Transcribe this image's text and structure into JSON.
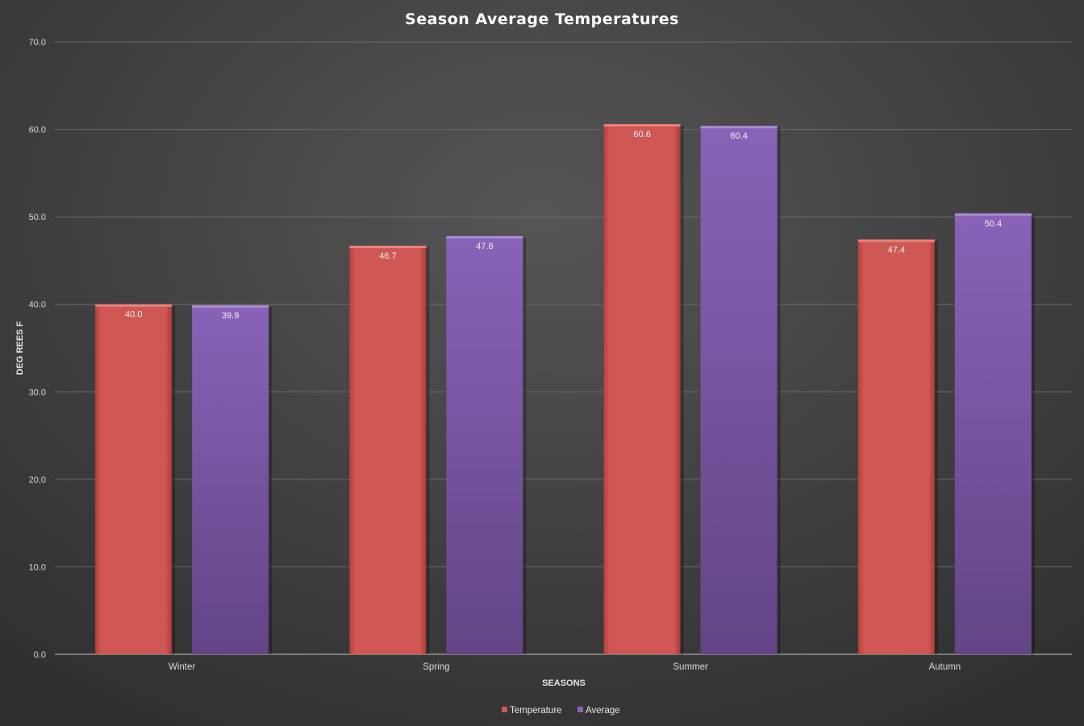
{
  "chart_data": {
    "type": "bar",
    "title": "Season Average Temperatures",
    "xlabel": "SEASONS",
    "ylabel": "DEG REES F",
    "categories": [
      "Winter",
      "Spring",
      "Summer",
      "Autumn"
    ],
    "series": [
      {
        "name": "Temperature",
        "values": [
          40.0,
          46.7,
          60.6,
          47.4
        ],
        "color": "#cf5754"
      },
      {
        "name": "Average",
        "values": [
          39.9,
          47.8,
          60.4,
          50.4
        ],
        "color": "#7e5aa8"
      }
    ],
    "ylim": [
      0,
      70
    ],
    "yticks": [
      "0.0",
      "10.0",
      "20.0",
      "30.0",
      "40.0",
      "50.0",
      "60.0",
      "70.0"
    ],
    "data_labels": true,
    "grid": true,
    "legend": "bottom"
  }
}
